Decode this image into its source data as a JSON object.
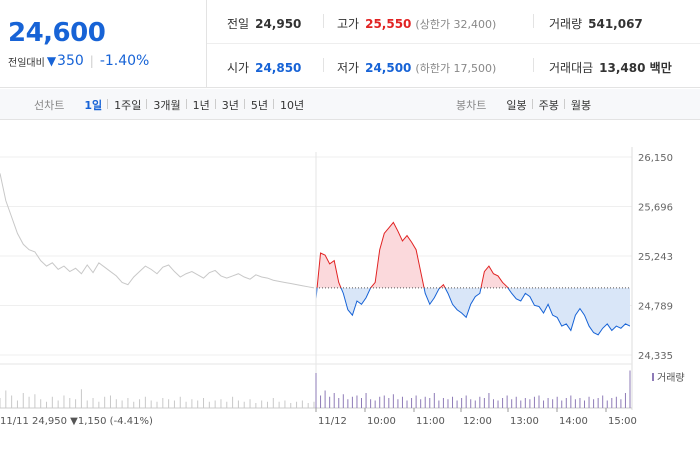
{
  "summary": {
    "price": "24,600",
    "diff_label": "전일대비",
    "diff_symbol": "▼",
    "diff_value": "350",
    "diff_rate": "-1.40%",
    "prev_close_label": "전일",
    "prev_close": "24,950",
    "high_label": "고가",
    "high": "25,550",
    "upper_limit": "(상한가 32,400)",
    "volume_label": "거래량",
    "volume": "541,067",
    "open_label": "시가",
    "open": "24,850",
    "low_label": "저가",
    "low": "24,500",
    "lower_limit": "(하한가 17,500)",
    "amount_label": "거래대금",
    "amount": "13,480 백만"
  },
  "tabs": {
    "line_title": "선차트",
    "line_tabs": [
      "1일",
      "1주일",
      "3개월",
      "1년",
      "3년",
      "5년",
      "10년"
    ],
    "active": "1일",
    "candle_title": "봉차트",
    "candle_tabs": [
      "일봉",
      "주봉",
      "월봉"
    ]
  },
  "colors": {
    "up": "#e12323",
    "down": "#1763d6",
    "prev_day_line": "#c8c8c8",
    "up_fill": "#fbd9dc",
    "down_fill": "#d9e6f8",
    "volume_today": "#8e7bb7",
    "volume_prev": "#c8c8c8"
  },
  "chart_data": {
    "type": "line",
    "ylim": [
      24335,
      26150
    ],
    "y_ticks": [
      "26,150",
      "25,696",
      "25,243",
      "24,789",
      "24,335"
    ],
    "baseline": 24950,
    "x_labels": [
      "11/11",
      "11/12",
      "10:00",
      "11:00",
      "12:00",
      "13:00",
      "14:00",
      "15:00"
    ],
    "prev_day_summary": "11/11  24,950 ▼1,150 (-4.41%)",
    "prev_day_series": {
      "name": "11/11",
      "values": [
        26000,
        25750,
        25600,
        25450,
        25350,
        25300,
        25280,
        25200,
        25150,
        25180,
        25120,
        25150,
        25100,
        25130,
        25080,
        25160,
        25090,
        25180,
        25140,
        25100,
        25060,
        25000,
        24980,
        25050,
        25100,
        25150,
        25120,
        25080,
        25140,
        25160,
        25100,
        25050,
        25080,
        25100,
        25070,
        25040,
        25090,
        25110,
        25060,
        25040,
        25060,
        25080,
        25050,
        25030,
        25070,
        25050,
        25040,
        25020,
        25010,
        25000,
        24990,
        24980,
        24970,
        24960,
        24950
      ]
    },
    "today_series": {
      "name": "11/12",
      "values": [
        24850,
        25270,
        25250,
        25170,
        25200,
        25000,
        24900,
        24750,
        24700,
        24830,
        24800,
        24860,
        24950,
        25000,
        25300,
        25450,
        25500,
        25550,
        25470,
        25380,
        25430,
        25370,
        25300,
        25100,
        24900,
        24800,
        24860,
        24940,
        24980,
        24900,
        24800,
        24750,
        24720,
        24680,
        24800,
        24870,
        24900,
        25100,
        25150,
        25080,
        25060,
        25000,
        24960,
        24900,
        24850,
        24830,
        24900,
        24870,
        24790,
        24780,
        24720,
        24800,
        24700,
        24680,
        24600,
        24620,
        24560,
        24700,
        24760,
        24700,
        24600,
        24540,
        24520,
        24580,
        24620,
        24560,
        24600,
        24580,
        24620,
        24600
      ],
      "prices_for_fill": true
    },
    "volume": {
      "label": "거래량",
      "prev_day": [
        8,
        14,
        10,
        6,
        12,
        9,
        11,
        7,
        5,
        9,
        6,
        10,
        8,
        7,
        15,
        6,
        8,
        5,
        9,
        10,
        7,
        6,
        8,
        5,
        7,
        9,
        6,
        5,
        8,
        7,
        6,
        9,
        5,
        7,
        6,
        8,
        5,
        6,
        7,
        5,
        9,
        6,
        5,
        7,
        4,
        6,
        5,
        8,
        5,
        6,
        4,
        5,
        6,
        4,
        5
      ],
      "today": [
        28,
        10,
        14,
        9,
        12,
        8,
        11,
        7,
        9,
        10,
        8,
        12,
        7,
        6,
        9,
        10,
        8,
        11,
        7,
        9,
        6,
        8,
        10,
        7,
        9,
        8,
        12,
        6,
        8,
        7,
        9,
        6,
        8,
        10,
        7,
        6,
        9,
        8,
        12,
        7,
        6,
        8,
        10,
        7,
        9,
        6,
        8,
        7,
        9,
        10,
        6,
        8,
        7,
        9,
        6,
        8,
        10,
        7,
        8,
        6,
        9,
        7,
        8,
        10,
        6,
        8,
        9,
        7,
        12,
        30
      ]
    }
  }
}
